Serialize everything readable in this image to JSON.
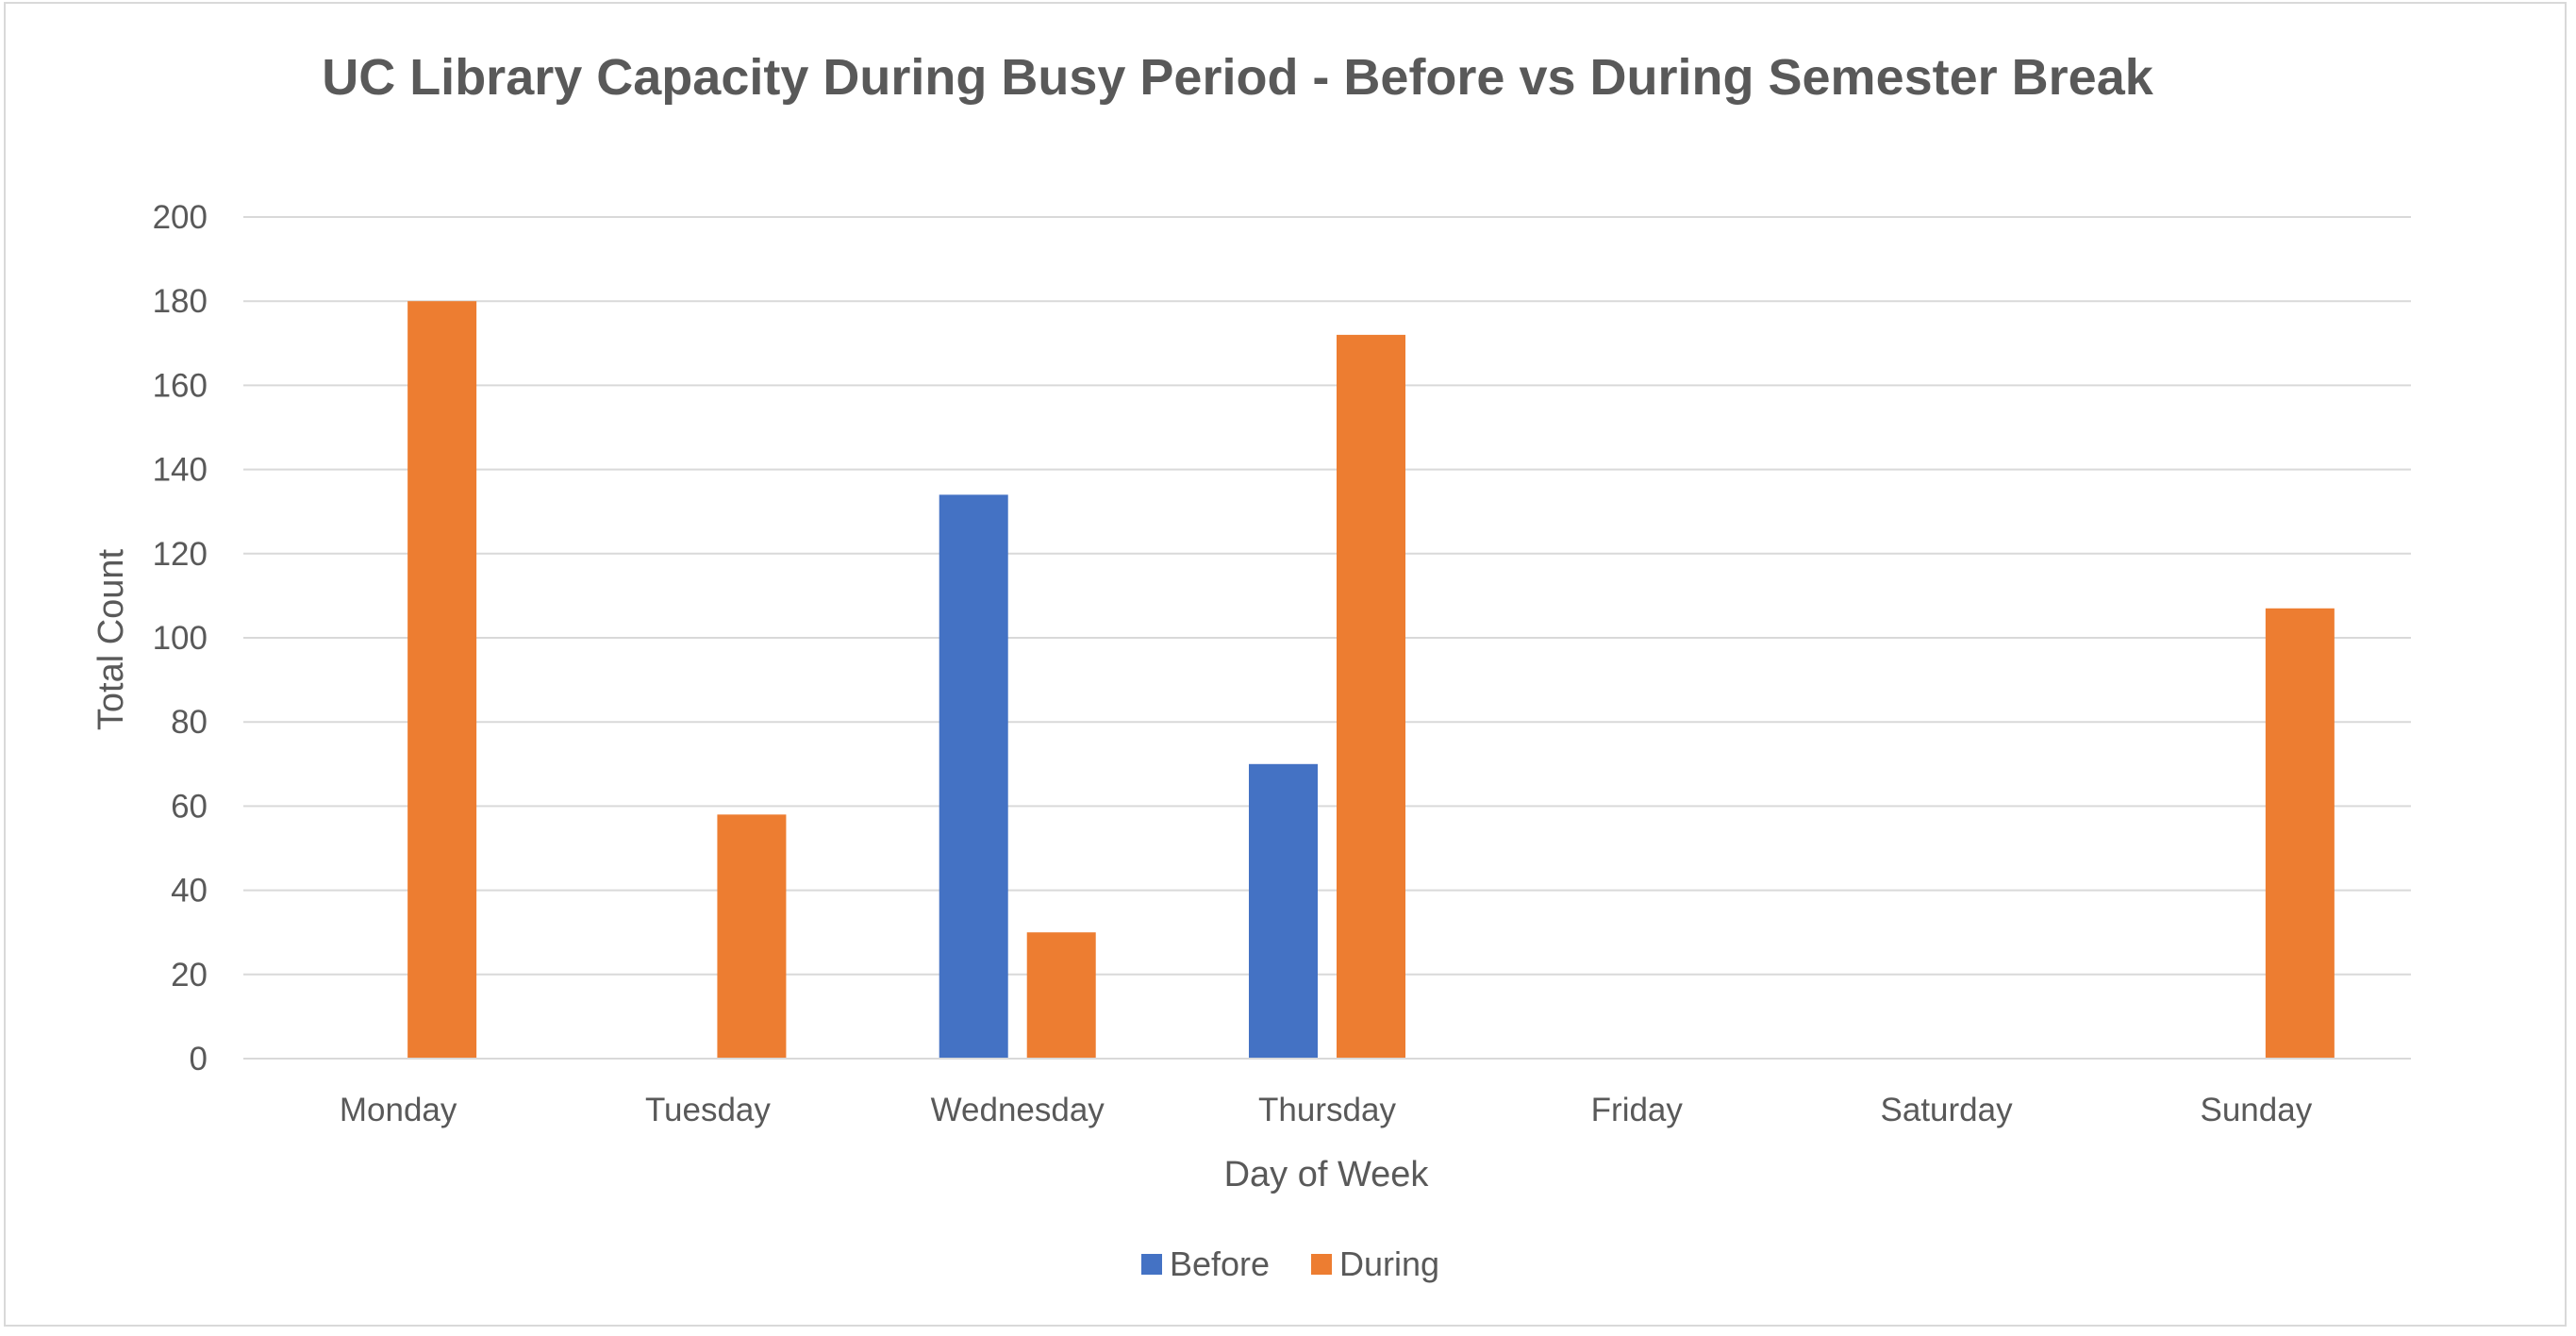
{
  "chart_data": {
    "type": "bar",
    "title": "UC Library Capacity During Busy Period - Before vs During Semester Break",
    "xlabel": "Day of Week",
    "ylabel": "Total Count",
    "categories": [
      "Monday",
      "Tuesday",
      "Wednesday",
      "Thursday",
      "Friday",
      "Saturday",
      "Sunday"
    ],
    "series": [
      {
        "name": "Before",
        "color": "#4472c4",
        "values": [
          0,
          0,
          134,
          70,
          0,
          0,
          0
        ]
      },
      {
        "name": "During",
        "color": "#ed7d31",
        "values": [
          180,
          58,
          30,
          172,
          0,
          0,
          107
        ]
      }
    ],
    "ylim": [
      0,
      200
    ],
    "yticks": [
      0,
      20,
      40,
      60,
      80,
      100,
      120,
      140,
      160,
      180,
      200
    ],
    "grid": true,
    "gridline_color": "#d9d9d9",
    "legend_position": "bottom"
  }
}
